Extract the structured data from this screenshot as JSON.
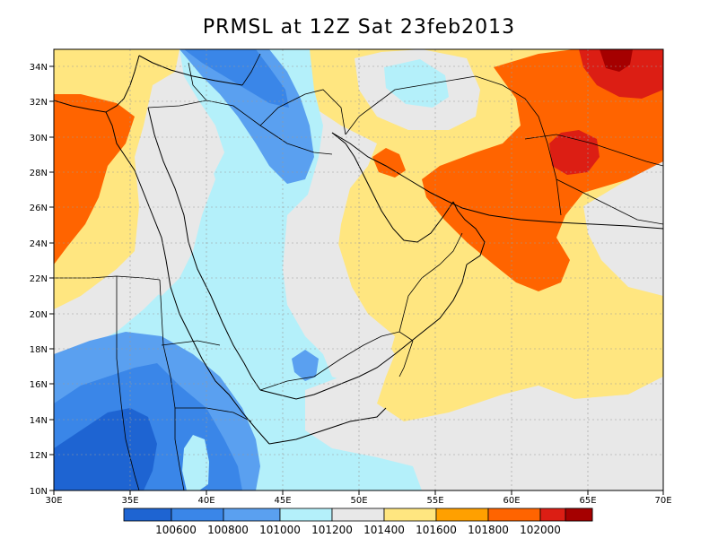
{
  "title": "PRMSL at 12Z Sat 23feb2013",
  "colors": {
    "c1": "#1e64d2",
    "c2": "#3a86e8",
    "c3": "#5aa0f0",
    "c4": "#b4f0fa",
    "c5": "#e8e8e8",
    "c6": "#ffe680",
    "c7": "#ffa000",
    "c8": "#ff6400",
    "c9": "#dc1e14",
    "c10": "#a50000"
  },
  "lat_labels": [
    "34N",
    "32N",
    "30N",
    "28N",
    "26N",
    "24N",
    "22N",
    "20N",
    "18N",
    "16N",
    "14N",
    "12N",
    "10N"
  ],
  "lon_labels": [
    "30E",
    "35E",
    "40E",
    "45E",
    "50E",
    "55E",
    "60E",
    "65E",
    "70E"
  ],
  "colorbar": {
    "labels": [
      "100600",
      "100800",
      "101000",
      "101200",
      "101400",
      "101600",
      "101800",
      "102000"
    ]
  }
}
